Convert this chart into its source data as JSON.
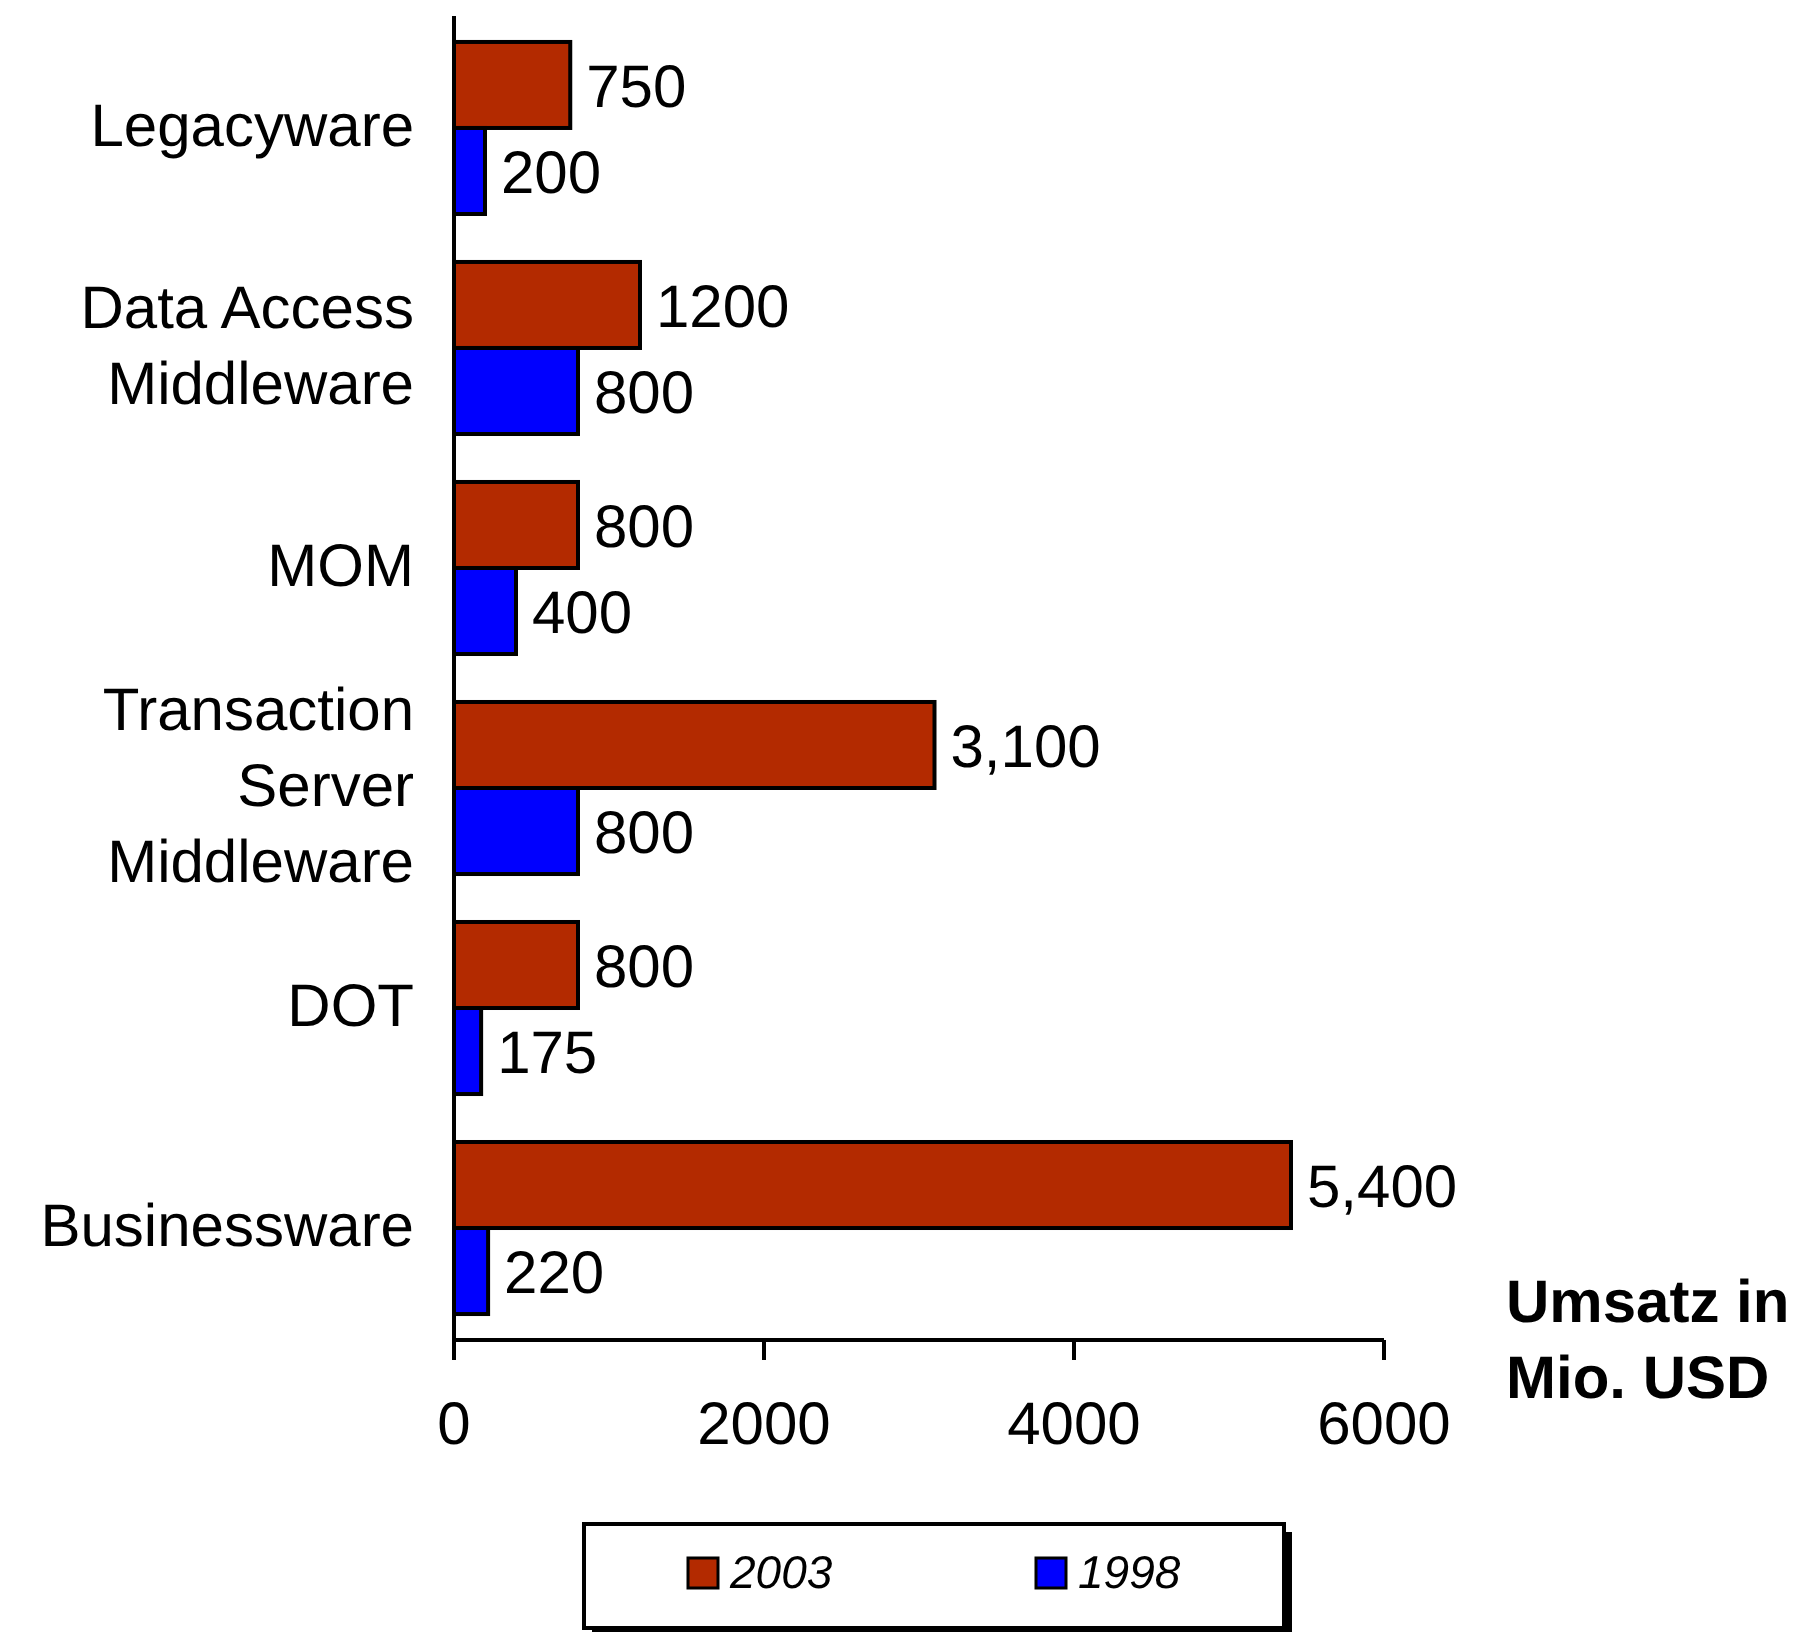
{
  "chart_data": {
    "type": "bar",
    "orientation": "horizontal",
    "categories": [
      "Legacyware",
      "Data Access Middleware",
      "MOM",
      "Transaction Server Middleware",
      "DOT",
      "Businessware"
    ],
    "series": [
      {
        "name": "2003",
        "color": "#b32a00",
        "values": [
          750,
          1200,
          800,
          3100,
          800,
          5400
        ],
        "value_labels": [
          "750",
          "1200",
          "800",
          "3,100",
          "800",
          "5,400"
        ]
      },
      {
        "name": "1998",
        "color": "#0000ff",
        "values": [
          200,
          800,
          400,
          800,
          175,
          220
        ],
        "value_labels": [
          "200",
          "800",
          "400",
          "800",
          "175",
          "220"
        ]
      }
    ],
    "xlabel": "Umsatz in Mio. USD",
    "xlim": [
      0,
      6000
    ],
    "xticks": [
      0,
      2000,
      4000,
      6000
    ],
    "legend": "bottom"
  }
}
